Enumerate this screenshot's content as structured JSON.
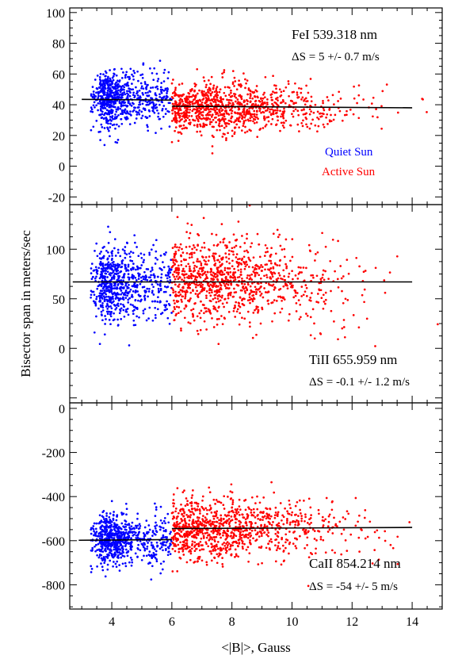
{
  "figure": {
    "ylabel": "Bisector span in meters/sec",
    "xlabel": "<|B|>, Gauss"
  },
  "legend": {
    "quiet": {
      "label": "Quiet Sun",
      "color": "#0000ff"
    },
    "active": {
      "label": "Active Sun",
      "color": "#ff0000"
    }
  },
  "chart_data": [
    {
      "type": "scatter",
      "panel": "top",
      "annotation_line": "FeI 539.318 nm",
      "annotation_delta": "ΔS = 5 +/- 0.7 m/s",
      "xlim": [
        2.6,
        15.0
      ],
      "ylim": [
        -25,
        103
      ],
      "xticks": [
        4,
        6,
        8,
        10,
        12,
        14
      ],
      "yticks": [
        -20,
        0,
        20,
        40,
        60,
        80,
        100
      ],
      "show_x_tick_labels": false,
      "series": [
        {
          "name": "Quiet Sun",
          "color": "#0000ff",
          "x_range": [
            3.0,
            6.0
          ],
          "y_center": 44,
          "y_spread": 9,
          "count": 700
        },
        {
          "name": "Active Sun",
          "color": "#ff0000",
          "x_range": [
            6.0,
            15.0
          ],
          "y_center": 38,
          "y_spread": 8,
          "count": 1000
        }
      ],
      "fit_lines": [
        {
          "x": [
            3.0,
            6.0
          ],
          "y": [
            43.5,
            43.0
          ]
        },
        {
          "x": [
            6.0,
            14.0
          ],
          "y": [
            39.0,
            38.0
          ]
        }
      ]
    },
    {
      "type": "scatter",
      "panel": "middle",
      "annotation_line": "TiII 655.959 nm",
      "annotation_delta": "ΔS = -0.1 +/- 1.2 m/s",
      "xlim": [
        2.6,
        15.0
      ],
      "ylim": [
        -55,
        145
      ],
      "xticks": [
        4,
        6,
        8,
        10,
        12,
        14
      ],
      "yticks": [
        0,
        50,
        100
      ],
      "show_x_tick_labels": false,
      "series": [
        {
          "name": "Quiet Sun",
          "color": "#0000ff",
          "x_range": [
            3.0,
            6.0
          ],
          "y_center": 65,
          "y_spread": 18,
          "count": 700
        },
        {
          "name": "Active Sun",
          "color": "#ff0000",
          "x_range": [
            6.0,
            15.0
          ],
          "y_center": 68,
          "y_spread": 22,
          "count": 1000
        }
      ],
      "fit_lines": [
        {
          "x": [
            2.7,
            6.0
          ],
          "y": [
            67.0,
            67.0
          ]
        },
        {
          "x": [
            6.0,
            14.0
          ],
          "y": [
            67.0,
            67.0
          ]
        }
      ]
    },
    {
      "type": "scatter",
      "panel": "bottom",
      "annotation_line": "CaII 854.214 nm",
      "annotation_delta": "ΔS = -54 +/- 5 m/s",
      "xlim": [
        2.6,
        15.0
      ],
      "ylim": [
        -910,
        25
      ],
      "xticks": [
        4,
        6,
        8,
        10,
        12,
        14
      ],
      "yticks": [
        -800,
        -600,
        -400,
        -200,
        0
      ],
      "show_x_tick_labels": true,
      "series": [
        {
          "name": "Quiet Sun",
          "color": "#0000ff",
          "x_range": [
            3.0,
            6.0
          ],
          "y_center": -600,
          "y_spread": 60,
          "count": 700
        },
        {
          "name": "Active Sun",
          "color": "#ff0000",
          "x_range": [
            6.0,
            15.0
          ],
          "y_center": -545,
          "y_spread": 70,
          "count": 1000
        }
      ],
      "fit_lines": [
        {
          "x": [
            2.9,
            6.0
          ],
          "y": [
            -598.0,
            -595.0
          ]
        },
        {
          "x": [
            6.0,
            14.0
          ],
          "y": [
            -545.0,
            -540.0
          ]
        }
      ]
    }
  ]
}
